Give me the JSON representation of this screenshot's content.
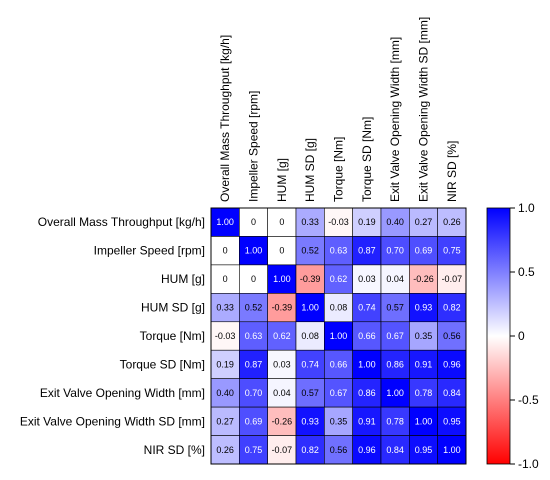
{
  "chart_data": {
    "type": "heatmap",
    "title": "",
    "xlabel": "",
    "ylabel": "",
    "variables": [
      "Overall Mass Throughput [kg/h]",
      "Impeller Speed [rpm]",
      "HUM [g]",
      "HUM SD [g]",
      "Torque [Nm]",
      "Torque SD [Nm]",
      "Exit Valve Opening Width [mm]",
      "Exit Valve Opening Width SD [mm]",
      "NIR SD [%]"
    ],
    "values": [
      [
        1.0,
        0,
        0,
        0.33,
        -0.03,
        0.19,
        0.4,
        0.27,
        0.26
      ],
      [
        0,
        1.0,
        0,
        0.52,
        0.63,
        0.87,
        0.7,
        0.69,
        0.75
      ],
      [
        0,
        0,
        1.0,
        -0.39,
        0.62,
        0.03,
        0.04,
        -0.26,
        -0.07
      ],
      [
        0.33,
        0.52,
        -0.39,
        1.0,
        0.08,
        0.74,
        0.57,
        0.93,
        0.82
      ],
      [
        -0.03,
        0.63,
        0.62,
        0.08,
        1.0,
        0.66,
        0.67,
        0.35,
        0.56
      ],
      [
        0.19,
        0.87,
        0.03,
        0.74,
        0.66,
        1.0,
        0.86,
        0.91,
        0.96
      ],
      [
        0.4,
        0.7,
        0.04,
        0.57,
        0.67,
        0.86,
        1.0,
        0.78,
        0.84
      ],
      [
        0.27,
        0.69,
        -0.26,
        0.93,
        0.35,
        0.91,
        0.78,
        1.0,
        0.95
      ],
      [
        0.26,
        0.75,
        -0.07,
        0.82,
        0.56,
        0.96,
        0.84,
        0.95,
        1.0
      ]
    ],
    "value_labels": [
      [
        "1.00",
        "0",
        "0",
        "0.33",
        "-0.03",
        "0.19",
        "0.40",
        "0.27",
        "0.26"
      ],
      [
        "0",
        "1.00",
        "0",
        "0.52",
        "0.63",
        "0.87",
        "0.70",
        "0.69",
        "0.75"
      ],
      [
        "0",
        "0",
        "1.00",
        "-0.39",
        "0.62",
        "0.03",
        "0.04",
        "-0.26",
        "-0.07"
      ],
      [
        "0.33",
        "0.52",
        "-0.39",
        "1.00",
        "0.08",
        "0.74",
        "0.57",
        "0.93",
        "0.82"
      ],
      [
        "-0.03",
        "0.63",
        "0.62",
        "0.08",
        "1.00",
        "0.66",
        "0.67",
        "0.35",
        "0.56"
      ],
      [
        "0.19",
        "0.87",
        "0.03",
        "0.74",
        "0.66",
        "1.00",
        "0.86",
        "0.91",
        "0.96"
      ],
      [
        "0.40",
        "0.70",
        "0.04",
        "0.57",
        "0.67",
        "0.86",
        "1.00",
        "0.78",
        "0.84"
      ],
      [
        "0.27",
        "0.69",
        "-0.26",
        "0.93",
        "0.35",
        "0.91",
        "0.78",
        "1.00",
        "0.95"
      ],
      [
        "0.26",
        "0.75",
        "-0.07",
        "0.82",
        "0.56",
        "0.96",
        "0.84",
        "0.95",
        "1.00"
      ]
    ],
    "colorbar": {
      "range": [
        -1.0,
        1.0
      ],
      "ticks": [
        1.0,
        0.5,
        0,
        -0.5,
        -1.0
      ],
      "tick_labels": [
        "1.0",
        "0.5",
        "0",
        "-0.5",
        "-1.0"
      ],
      "colors": {
        "low": "#ff0000",
        "mid": "#ffffff",
        "high": "#0000ff"
      }
    }
  }
}
